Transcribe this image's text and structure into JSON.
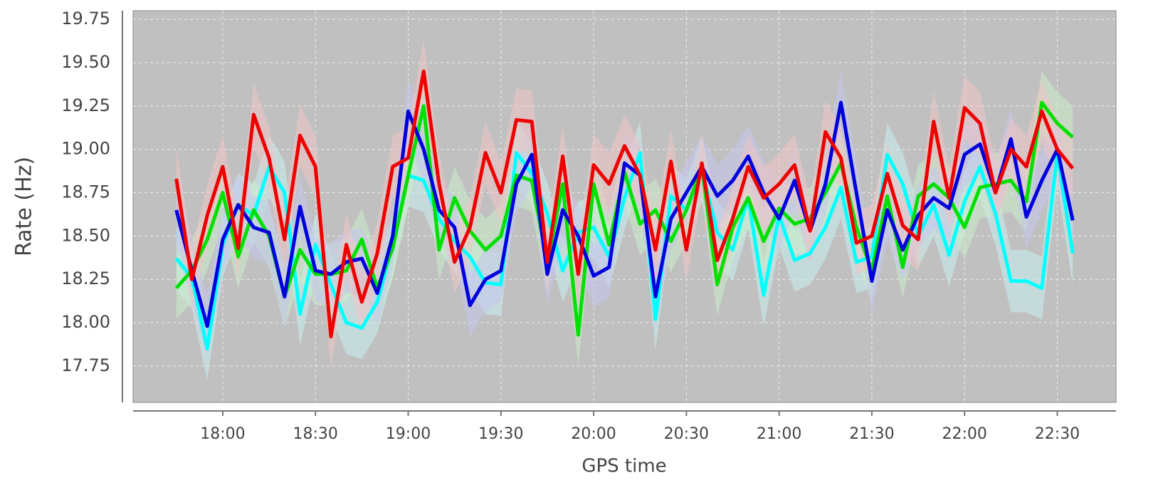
{
  "chart_data": {
    "type": "line",
    "xlabel": "GPS time",
    "ylabel": "Rate (Hz)",
    "x": [
      "17:45",
      "17:50",
      "17:55",
      "18:00",
      "18:05",
      "18:10",
      "18:15",
      "18:20",
      "18:25",
      "18:30",
      "18:35",
      "18:40",
      "18:45",
      "18:50",
      "18:55",
      "19:00",
      "19:05",
      "19:10",
      "19:15",
      "19:20",
      "19:25",
      "19:30",
      "19:35",
      "19:40",
      "19:45",
      "19:50",
      "19:55",
      "20:00",
      "20:05",
      "20:10",
      "20:15",
      "20:20",
      "20:25",
      "20:30",
      "20:35",
      "20:40",
      "20:45",
      "20:50",
      "20:55",
      "21:00",
      "21:05",
      "21:10",
      "21:15",
      "21:20",
      "21:25",
      "21:30",
      "21:35",
      "21:40",
      "21:45",
      "21:50",
      "21:55",
      "22:00",
      "22:05",
      "22:10",
      "22:15",
      "22:20",
      "22:25",
      "22:30",
      "22:35"
    ],
    "xlim": [
      "17:31",
      "22:49"
    ],
    "xticks": [
      "18:00",
      "18:30",
      "19:00",
      "19:30",
      "20:00",
      "20:30",
      "21:00",
      "21:30",
      "22:00",
      "22:30"
    ],
    "ylim": [
      17.54,
      19.8
    ],
    "yticks": [
      19.75,
      {
        "value": 19.5,
        "label": "19.50"
      },
      19.25,
      {
        "value": 19.0,
        "label": "19.00"
      },
      18.75,
      {
        "value": 18.5,
        "label": "18.50"
      },
      18.25,
      {
        "value": 18.0,
        "label": "18.00"
      },
      17.75
    ],
    "grid": true,
    "series": [
      {
        "color": "#00ffff",
        "band_color": "#c8f0f0",
        "error": 0.18,
        "values": [
          18.37,
          18.26,
          17.85,
          18.45,
          18.68,
          18.62,
          18.9,
          18.75,
          18.05,
          18.45,
          18.22,
          18.0,
          17.97,
          18.12,
          18.45,
          18.85,
          18.82,
          18.6,
          18.47,
          18.38,
          18.23,
          18.22,
          18.98,
          18.86,
          18.63,
          18.3,
          18.52,
          18.55,
          18.38,
          18.72,
          18.98,
          18.02,
          18.73,
          18.65,
          18.88,
          18.52,
          18.42,
          18.72,
          18.16,
          18.62,
          18.36,
          18.4,
          18.55,
          18.78,
          18.35,
          18.38,
          18.97,
          18.8,
          18.5,
          18.68,
          18.39,
          18.7,
          18.9,
          18.63,
          18.24,
          18.24,
          18.2,
          18.98,
          18.4
        ]
      },
      {
        "color": "#00e000",
        "band_color": "#c8ecc8",
        "error": 0.18,
        "values": [
          18.2,
          18.3,
          18.48,
          18.75,
          18.38,
          18.65,
          18.5,
          18.15,
          18.42,
          18.28,
          18.28,
          18.3,
          18.48,
          18.2,
          18.43,
          18.85,
          19.25,
          18.42,
          18.72,
          18.53,
          18.42,
          18.5,
          18.85,
          18.82,
          18.35,
          18.8,
          17.93,
          18.8,
          18.45,
          18.87,
          18.57,
          18.65,
          18.47,
          18.65,
          18.9,
          18.22,
          18.55,
          18.72,
          18.47,
          18.66,
          18.57,
          18.6,
          18.75,
          18.92,
          18.55,
          18.3,
          18.73,
          18.32,
          18.73,
          18.8,
          18.72,
          18.55,
          18.78,
          18.8,
          18.82,
          18.7,
          19.27,
          19.15,
          19.07
        ]
      },
      {
        "color": "#0000dd",
        "band_color": "#c4c4ec",
        "error": 0.18,
        "values": [
          18.65,
          18.3,
          17.98,
          18.48,
          18.68,
          18.55,
          18.52,
          18.15,
          18.67,
          18.3,
          18.28,
          18.35,
          18.37,
          18.17,
          18.5,
          19.22,
          19.0,
          18.65,
          18.55,
          18.1,
          18.25,
          18.3,
          18.8,
          18.97,
          18.28,
          18.65,
          18.5,
          18.27,
          18.32,
          18.92,
          18.85,
          18.15,
          18.6,
          18.75,
          18.9,
          18.73,
          18.82,
          18.96,
          18.75,
          18.6,
          18.82,
          18.53,
          18.8,
          19.27,
          18.75,
          18.24,
          18.65,
          18.42,
          18.62,
          18.72,
          18.66,
          18.97,
          19.03,
          18.75,
          19.06,
          18.61,
          18.82,
          19.0,
          18.59
        ]
      },
      {
        "color": "#ee0000",
        "band_color": "#f0c4c4",
        "error": 0.18,
        "values": [
          18.83,
          18.25,
          18.62,
          18.9,
          18.43,
          19.2,
          18.95,
          18.48,
          19.08,
          18.9,
          17.92,
          18.45,
          18.12,
          18.4,
          18.9,
          18.95,
          19.45,
          18.8,
          18.35,
          18.55,
          18.98,
          18.75,
          19.17,
          19.16,
          18.35,
          18.96,
          18.28,
          18.91,
          18.8,
          19.02,
          18.85,
          18.42,
          18.93,
          18.42,
          18.92,
          18.36,
          18.6,
          18.9,
          18.72,
          18.8,
          18.91,
          18.53,
          19.1,
          18.95,
          18.46,
          18.5,
          18.86,
          18.56,
          18.48,
          19.16,
          18.72,
          19.24,
          19.15,
          18.75,
          19.0,
          18.9,
          19.22,
          19.0,
          18.89
        ]
      }
    ]
  }
}
